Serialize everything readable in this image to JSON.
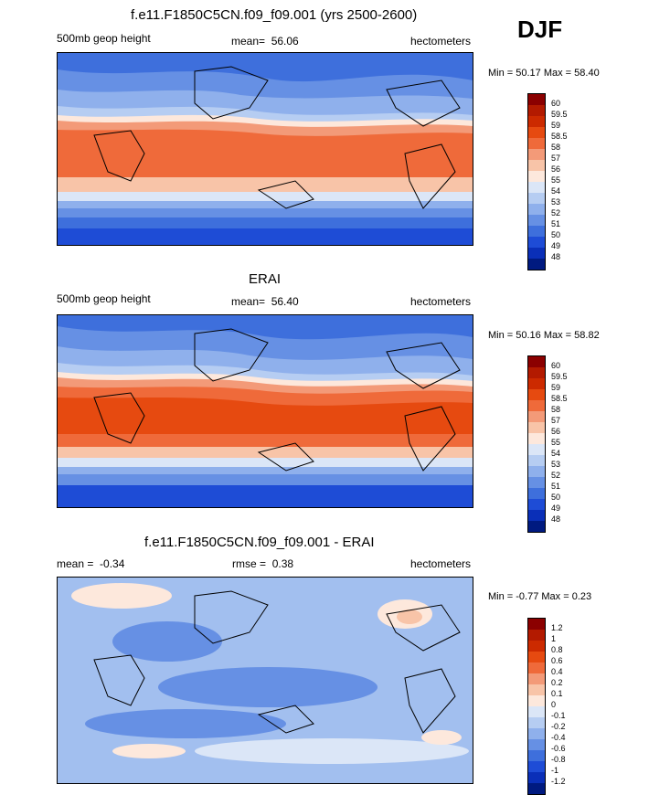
{
  "season": "DJF",
  "panels": [
    {
      "title": "f.e11.F1850C5CN.f09_f09.001 (yrs 2500-2600)",
      "variable": "500mb geop height",
      "mean_label": "mean=",
      "mean_value": "56.06",
      "units": "hectometers",
      "minmax": "Min =  50.17 Max =  58.40",
      "colorbar_labels": [
        "60",
        "59.5",
        "59",
        "58.5",
        "58",
        "57",
        "56",
        "55",
        "54",
        "53",
        "52",
        "51",
        "50",
        "49",
        "48"
      ],
      "colorbar_colors": [
        "#8b0000",
        "#b31a00",
        "#cc2a00",
        "#e64a10",
        "#ef6a3a",
        "#f39a78",
        "#f8c4a8",
        "#fde8dc",
        "#dbe6f7",
        "#b6cdf2",
        "#8fb0ec",
        "#6690e4",
        "#3e6fdc",
        "#1e4cd6",
        "#0a2fb8",
        "#001a80"
      ]
    },
    {
      "title": "ERAI",
      "variable": "500mb geop height",
      "mean_label": "mean=",
      "mean_value": "56.40",
      "units": "hectometers",
      "minmax": "Min =  50.16 Max =  58.82",
      "colorbar_labels": [
        "60",
        "59.5",
        "59",
        "58.5",
        "58",
        "57",
        "56",
        "55",
        "54",
        "53",
        "52",
        "51",
        "50",
        "49",
        "48"
      ],
      "colorbar_colors": [
        "#8b0000",
        "#b31a00",
        "#cc2a00",
        "#e64a10",
        "#ef6a3a",
        "#f39a78",
        "#f8c4a8",
        "#fde8dc",
        "#dbe6f7",
        "#b6cdf2",
        "#8fb0ec",
        "#6690e4",
        "#3e6fdc",
        "#1e4cd6",
        "#0a2fb8",
        "#001a80"
      ]
    },
    {
      "title": "f.e11.F1850C5CN.f09_f09.001 - ERAI",
      "mean_label": "mean =",
      "mean_value": "-0.34",
      "rmse_label": "rmse =",
      "rmse_value": "0.38",
      "units": "hectometers",
      "minmax": "Min =  -0.77 Max =    0.23",
      "colorbar_labels": [
        "1.2",
        "1",
        "0.8",
        "0.6",
        "0.4",
        "0.2",
        "0.1",
        "0",
        "-0.1",
        "-0.2",
        "-0.4",
        "-0.6",
        "-0.8",
        "-1",
        "-1.2"
      ],
      "colorbar_colors": [
        "#8b0000",
        "#b31a00",
        "#cc2a00",
        "#e64a10",
        "#ef6a3a",
        "#f39a78",
        "#f8c4a8",
        "#fde8dc",
        "#dbe6f7",
        "#b6cdf2",
        "#8fb0ec",
        "#6690e4",
        "#3e6fdc",
        "#1e4cd6",
        "#0a2fb8",
        "#001a80"
      ]
    }
  ]
}
